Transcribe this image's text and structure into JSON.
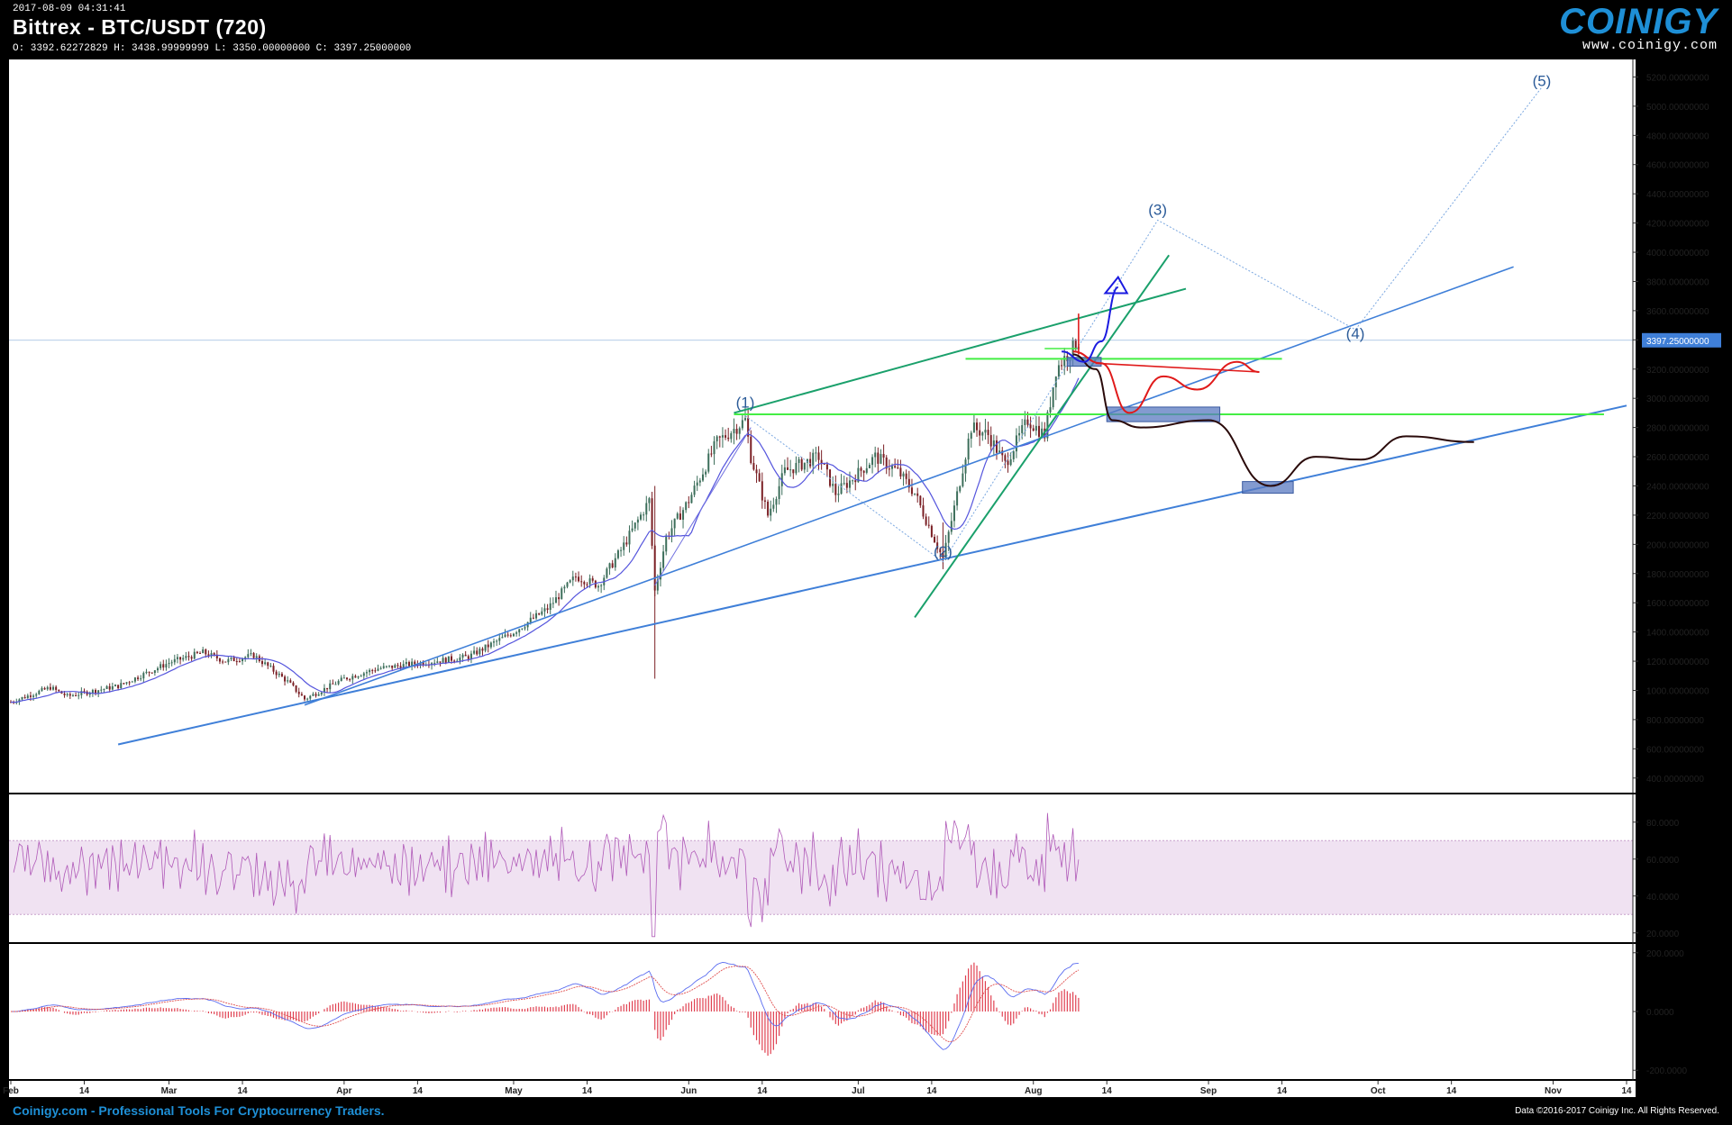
{
  "header": {
    "timestamp": "2017-08-09 04:31:41",
    "title": "Bittrex - BTC/USDT (720)",
    "ohlc": "O: 3392.62272829 H: 3438.99999999 L: 3350.00000000 C: 3397.25000000",
    "logo_text": "COINIGY",
    "logo_url": "www.coinigy.com"
  },
  "footer": {
    "left": "Coinigy.com - Professional Tools For Cryptocurrency Traders.",
    "right": "Data ©2016-2017 Coinigy Inc. All Rights Reserved."
  },
  "colors": {
    "background": "#000000",
    "panel": "#ffffff",
    "accent": "#1e8fd6",
    "candle_up": "#3c6e5a",
    "candle_down": "#7a1f24",
    "trendline": "#3f7fd8",
    "channel_green": "#1aa06b",
    "level_green": "#44ee44",
    "wave_label": "#2a5a98",
    "rsi_line": "#b05ab8",
    "rsi_band": "#f0e2f2",
    "macd_line": "#5a6cf0",
    "signal_line": "#e05050",
    "histogram": "#e04050",
    "price_tag": "#3f7fd8"
  },
  "chart_data": [
    {
      "type": "candlestick",
      "pair": "BTC/USDT",
      "interval_minutes": 720,
      "ylim": [
        300,
        5320
      ],
      "y_ticks": [
        "5200.00000000",
        "5000.00000000",
        "4800.00000000",
        "4600.00000000",
        "4400.00000000",
        "4200.00000000",
        "4000.00000000",
        "3800.00000000",
        "3600.00000000",
        "3400.00000000",
        "3200.00000000",
        "3000.00000000",
        "2800.00000000",
        "2600.00000000",
        "2400.00000000",
        "2200.00000000",
        "2000.00000000",
        "1800.00000000",
        "1600.00000000",
        "1400.00000000",
        "1200.00000000",
        "1000.00000000",
        "800.00000000",
        "600.00000000",
        "400.00000000"
      ],
      "last_price": 3397.25,
      "last_price_label": "3397.25000000",
      "x_labels": [
        "Feb",
        "14",
        "Mar",
        "14",
        "Apr",
        "14",
        "May",
        "14",
        "Jun",
        "14",
        "Jul",
        "14",
        "Aug",
        "14",
        "Sep",
        "14",
        "Oct",
        "14",
        "Nov",
        "14"
      ],
      "close_path": [
        {
          "x": "2017-02-01",
          "y": 920
        },
        {
          "x": "2017-02-08",
          "y": 1020
        },
        {
          "x": "2017-02-11",
          "y": 960
        },
        {
          "x": "2017-02-20",
          "y": 1030
        },
        {
          "x": "2017-03-01",
          "y": 1190
        },
        {
          "x": "2017-03-07",
          "y": 1260
        },
        {
          "x": "2017-03-11",
          "y": 1200
        },
        {
          "x": "2017-03-16",
          "y": 1240
        },
        {
          "x": "2017-03-22",
          "y": 1060
        },
        {
          "x": "2017-03-25",
          "y": 940
        },
        {
          "x": "2017-04-01",
          "y": 1080
        },
        {
          "x": "2017-04-07",
          "y": 1150
        },
        {
          "x": "2017-04-15",
          "y": 1190
        },
        {
          "x": "2017-04-23",
          "y": 1230
        },
        {
          "x": "2017-05-01",
          "y": 1400
        },
        {
          "x": "2017-05-07",
          "y": 1560
        },
        {
          "x": "2017-05-12",
          "y": 1780
        },
        {
          "x": "2017-05-16",
          "y": 1720
        },
        {
          "x": "2017-05-20",
          "y": 1960
        },
        {
          "x": "2017-05-25",
          "y": 2300
        },
        {
          "x": "2017-05-26",
          "y": 1680
        },
        {
          "x": "2017-05-28",
          "y": 2050
        },
        {
          "x": "2017-06-01",
          "y": 2300
        },
        {
          "x": "2017-06-06",
          "y": 2700
        },
        {
          "x": "2017-06-11",
          "y": 2850
        },
        {
          "x": "2017-06-12",
          "y": 2600
        },
        {
          "x": "2017-06-15",
          "y": 2200
        },
        {
          "x": "2017-06-18",
          "y": 2500
        },
        {
          "x": "2017-06-24",
          "y": 2600
        },
        {
          "x": "2017-06-27",
          "y": 2350
        },
        {
          "x": "2017-06-30",
          "y": 2450
        },
        {
          "x": "2017-07-04",
          "y": 2600
        },
        {
          "x": "2017-07-08",
          "y": 2500
        },
        {
          "x": "2017-07-11",
          "y": 2350
        },
        {
          "x": "2017-07-16",
          "y": 1900
        },
        {
          "x": "2017-07-18",
          "y": 2250
        },
        {
          "x": "2017-07-21",
          "y": 2800
        },
        {
          "x": "2017-07-24",
          "y": 2750
        },
        {
          "x": "2017-07-27",
          "y": 2550
        },
        {
          "x": "2017-07-31",
          "y": 2850
        },
        {
          "x": "2017-08-03",
          "y": 2750
        },
        {
          "x": "2017-08-05",
          "y": 3200
        },
        {
          "x": "2017-08-09",
          "y": 3397
        }
      ],
      "wave_labels": [
        {
          "label": "(1)",
          "date": "2017-06-11",
          "price": 2900
        },
        {
          "label": "(2)",
          "date": "2017-07-16",
          "price": 1880
        },
        {
          "label": "(3)",
          "date": "2017-08-23",
          "price": 4220
        },
        {
          "label": "(4)",
          "date": "2017-09-27",
          "price": 3370
        },
        {
          "label": "(5)",
          "date": "2017-10-30",
          "price": 5100
        }
      ]
    },
    {
      "type": "line",
      "name": "RSI",
      "ylim": [
        15,
        95
      ],
      "band": [
        30,
        70
      ],
      "y_ticks": [
        "80.0000",
        "60.0000",
        "40.0000",
        "20.0000"
      ]
    },
    {
      "type": "line",
      "name": "MACD",
      "ylim": [
        -230,
        230
      ],
      "y_ticks": [
        "200.0000",
        "0.0000",
        "-200.0000"
      ]
    }
  ]
}
